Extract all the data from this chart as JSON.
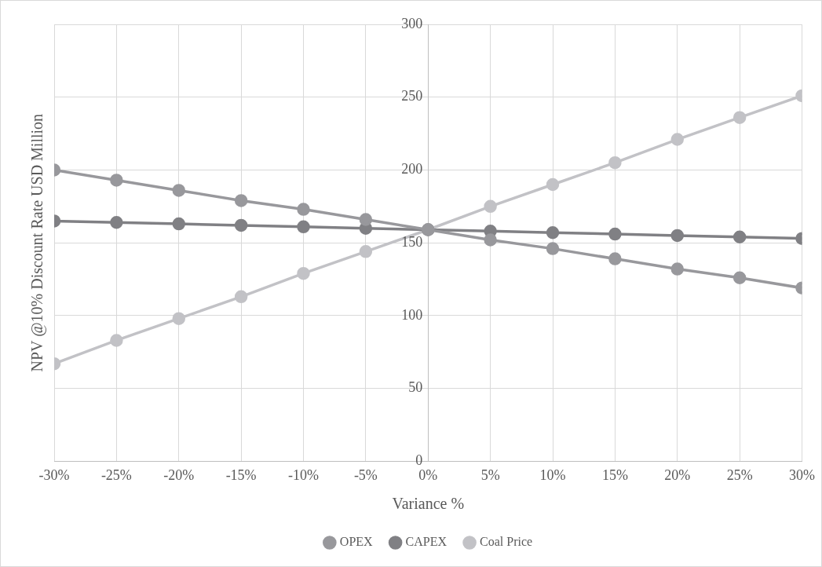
{
  "chart_data": {
    "type": "line",
    "xlabel": "Variance %",
    "ylabel": "NPV @10% Discount Rate USD Million",
    "x": [
      -30,
      -25,
      -20,
      -15,
      -10,
      -5,
      0,
      5,
      10,
      15,
      20,
      25,
      30
    ],
    "xlim": [
      -30,
      30
    ],
    "xticks": [
      {
        "value": -30,
        "label": "-30%"
      },
      {
        "value": -25,
        "label": "-25%"
      },
      {
        "value": -20,
        "label": "-20%"
      },
      {
        "value": -15,
        "label": "-15%"
      },
      {
        "value": -10,
        "label": "-10%"
      },
      {
        "value": -5,
        "label": "-5%"
      },
      {
        "value": 0,
        "label": "0%"
      },
      {
        "value": 5,
        "label": "5%"
      },
      {
        "value": 10,
        "label": "10%"
      },
      {
        "value": 15,
        "label": "15%"
      },
      {
        "value": 20,
        "label": "20%"
      },
      {
        "value": 25,
        "label": "25%"
      },
      {
        "value": 30,
        "label": "30%"
      }
    ],
    "ylim": [
      0,
      300
    ],
    "yticks": [
      0,
      50,
      100,
      150,
      200,
      250,
      300
    ],
    "series": [
      {
        "name": "OPEX",
        "color": "#98989c",
        "values": [
          200,
          193,
          186,
          179,
          173,
          166,
          159,
          152,
          146,
          139,
          132,
          126,
          119
        ]
      },
      {
        "name": "CAPEX",
        "color": "#808084",
        "values": [
          165,
          164,
          163,
          162,
          161,
          160,
          159,
          158,
          157,
          156,
          155,
          154,
          153
        ]
      },
      {
        "name": "Coal Price",
        "color": "#c2c2c6",
        "values": [
          67,
          83,
          98,
          113,
          129,
          144,
          159,
          175,
          190,
          205,
          221,
          236,
          251
        ]
      }
    ],
    "grid": true,
    "legend": "bottom",
    "marker": "circle",
    "line_style": "solid"
  }
}
